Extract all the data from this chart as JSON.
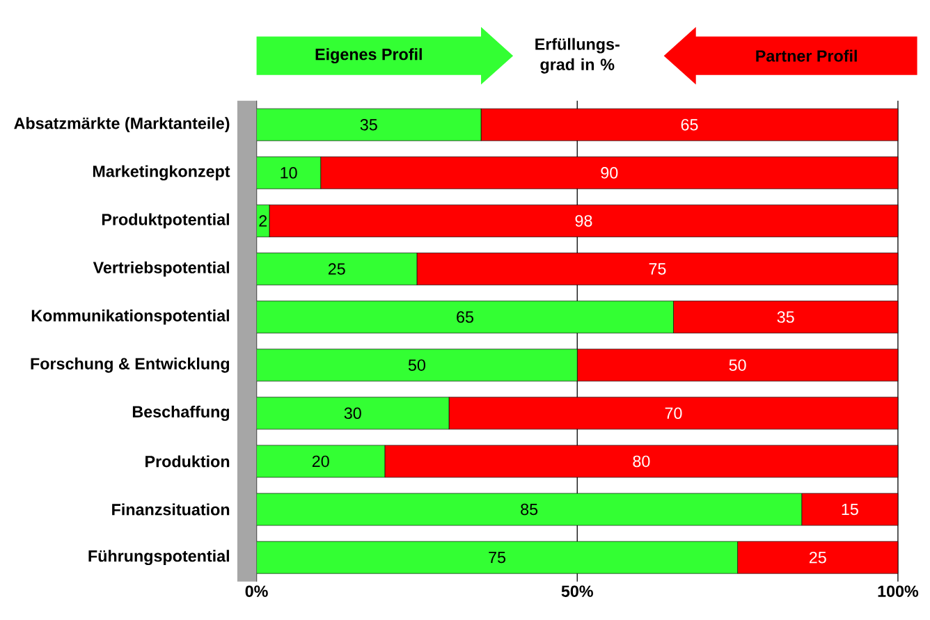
{
  "chart_data": {
    "type": "bar",
    "orientation": "horizontal",
    "stacked": true,
    "title": "Erfüllungs-grad in %",
    "categories": [
      "Absatzmärkte (Marktanteile)",
      "Marketingkonzept",
      "Produktpotential",
      "Vertriebspotential",
      "Kommunikationspotential",
      "Forschung & Entwicklung",
      "Beschaffung",
      "Produktion",
      "Finanzsituation",
      "Führungspotential"
    ],
    "series": [
      {
        "name": "Eigenes Profil",
        "color": "#33ff33",
        "values": [
          35,
          10,
          2,
          25,
          65,
          50,
          30,
          20,
          85,
          75
        ]
      },
      {
        "name": "Partner Profil",
        "color": "#ff0000",
        "values": [
          65,
          90,
          98,
          75,
          35,
          50,
          70,
          80,
          15,
          25
        ]
      }
    ],
    "xlim": [
      0,
      100
    ],
    "xticks": [
      {
        "value": 0,
        "label": "0%"
      },
      {
        "value": 50,
        "label": "50%"
      },
      {
        "value": 100,
        "label": "100%"
      }
    ],
    "grid": "x",
    "legend": "top",
    "data_labels": true
  }
}
